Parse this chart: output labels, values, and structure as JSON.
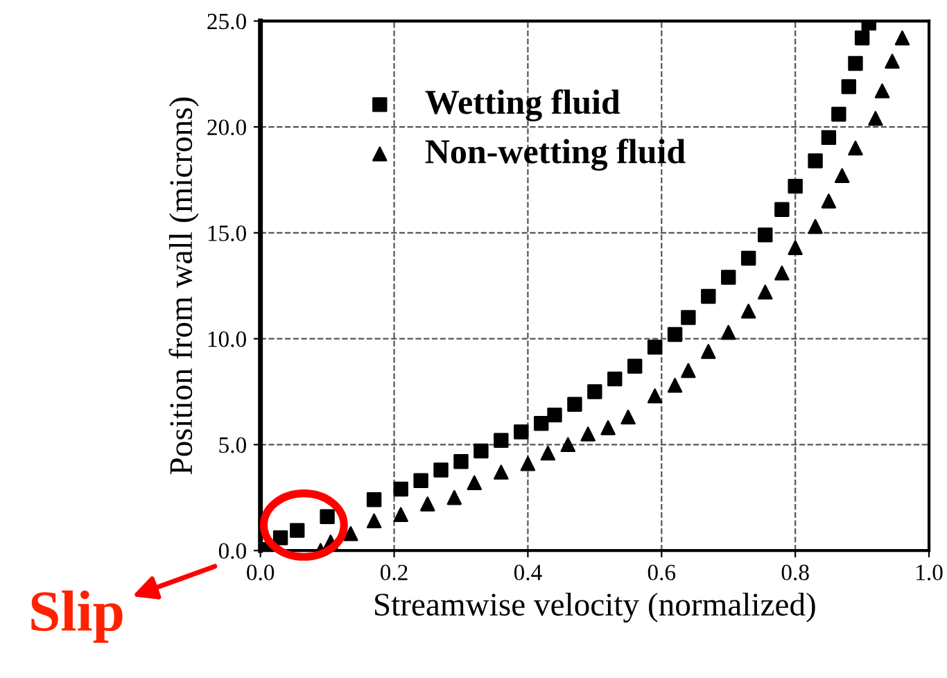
{
  "chart_data": {
    "type": "scatter",
    "xlabel": "Streamwise velocity (normalized)",
    "ylabel": "Position from wall (microns)",
    "xlim": [
      0,
      1
    ],
    "ylim": [
      0,
      25
    ],
    "xticks": [
      {
        "value": 0,
        "label": "0.0"
      },
      {
        "value": 0.2,
        "label": "0.2"
      },
      {
        "value": 0.4,
        "label": "0.4"
      },
      {
        "value": 0.6,
        "label": "0.6"
      },
      {
        "value": 0.8,
        "label": "0.8"
      },
      {
        "value": 1,
        "label": "1.0"
      }
    ],
    "yticks": [
      {
        "value": 0,
        "label": "0.0"
      },
      {
        "value": 5,
        "label": "5.0"
      },
      {
        "value": 10,
        "label": "10.0"
      },
      {
        "value": 15,
        "label": "15.0"
      },
      {
        "value": 20,
        "label": "20.0"
      },
      {
        "value": 25,
        "label": "25.0"
      }
    ],
    "grid": true,
    "legend": "top left",
    "series": [
      {
        "name": "Wetting fluid",
        "color": "#000000",
        "marker": "square",
        "x": [
          0.01,
          0.03,
          0.055,
          0.1,
          0.17,
          0.21,
          0.24,
          0.27,
          0.3,
          0.33,
          0.36,
          0.39,
          0.42,
          0.44,
          0.47,
          0.5,
          0.53,
          0.56,
          0.59,
          0.62,
          0.64,
          0.67,
          0.7,
          0.73,
          0.755,
          0.78,
          0.8,
          0.83,
          0.85,
          0.865,
          0.88,
          0.89,
          0.9,
          0.91
        ],
        "values": [
          0.05,
          0.6,
          0.95,
          1.6,
          2.4,
          2.9,
          3.3,
          3.8,
          4.2,
          4.7,
          5.2,
          5.6,
          6.0,
          6.4,
          6.9,
          7.5,
          8.1,
          8.7,
          9.6,
          10.2,
          11.0,
          12.0,
          12.9,
          13.8,
          14.9,
          16.1,
          17.2,
          18.4,
          19.5,
          20.6,
          21.9,
          23.0,
          24.2,
          24.9
        ]
      },
      {
        "name": "Non-wetting fluid",
        "color": "#000000",
        "marker": "triangle",
        "x": [
          0.09,
          0.105,
          0.135,
          0.17,
          0.21,
          0.25,
          0.29,
          0.32,
          0.36,
          0.4,
          0.43,
          0.46,
          0.49,
          0.52,
          0.55,
          0.59,
          0.62,
          0.64,
          0.67,
          0.7,
          0.73,
          0.755,
          0.78,
          0.8,
          0.83,
          0.85,
          0.87,
          0.89,
          0.92,
          0.93,
          0.945,
          0.96
        ],
        "values": [
          0.0,
          0.4,
          0.8,
          1.4,
          1.7,
          2.2,
          2.5,
          3.2,
          3.7,
          4.1,
          4.6,
          5.0,
          5.5,
          5.8,
          6.3,
          7.3,
          7.8,
          8.5,
          9.4,
          10.3,
          11.3,
          12.2,
          13.1,
          14.3,
          15.3,
          16.5,
          17.7,
          19.0,
          20.4,
          21.7,
          23.1,
          24.2
        ]
      }
    ],
    "annotations": [
      {
        "text": "Slip",
        "x": 0.04,
        "y": 0.5
      }
    ]
  }
}
